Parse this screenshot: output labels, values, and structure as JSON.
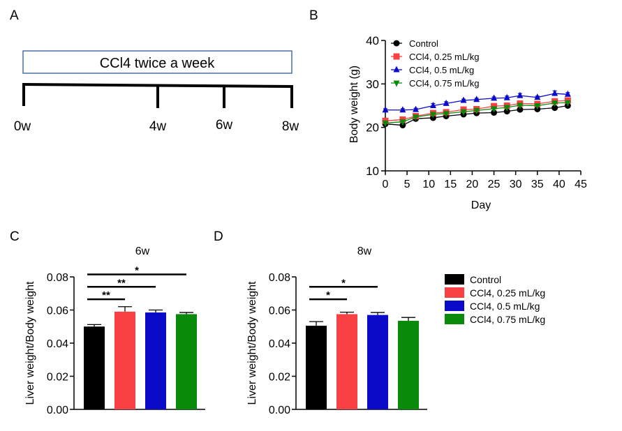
{
  "panels": {
    "a": {
      "letter": "A",
      "banner": "CCl4 twice a week",
      "timepoints": [
        "0w",
        "4w",
        "6w",
        "8w"
      ]
    },
    "b": {
      "letter": "B"
    },
    "c": {
      "letter": "C"
    },
    "d": {
      "letter": "D"
    }
  },
  "colors": {
    "control": "#000000",
    "dose_025": "#f94144",
    "dose_05": "#0a0ac8",
    "dose_075": "#0a8a0a",
    "banner_border": "#4a6fa5"
  },
  "chart_data": [
    {
      "type": "line",
      "xlabel": "Day",
      "ylabel": "Body weight (g)",
      "xlim": [
        0,
        45
      ],
      "ylim": [
        10,
        40
      ],
      "xticks": [
        "0",
        "5",
        "10",
        "15",
        "20",
        "25",
        "30",
        "35",
        "40",
        "45"
      ],
      "yticks": [
        "10",
        "20",
        "30",
        "40"
      ],
      "legend": "top-left",
      "x": [
        0,
        4,
        7,
        11,
        14,
        18,
        21,
        25,
        28,
        31,
        35,
        39,
        42
      ],
      "series": [
        {
          "name": "Control",
          "marker": "circle",
          "values": [
            20.8,
            20.5,
            22.0,
            22.2,
            22.6,
            23.0,
            23.3,
            23.4,
            23.7,
            24.1,
            24.2,
            24.5,
            25.0
          ],
          "errors": [
            0.3,
            0.3,
            0.3,
            0.3,
            0.3,
            0.3,
            0.3,
            0.3,
            0.3,
            0.3,
            0.3,
            0.3,
            0.4
          ]
        },
        {
          "name": "CCl4, 0.25 mL/kg",
          "marker": "square",
          "values": [
            21.5,
            21.8,
            22.6,
            23.3,
            23.5,
            24.1,
            24.2,
            24.9,
            25.0,
            25.5,
            25.4,
            26.0,
            26.2
          ],
          "errors": [
            0.3,
            0.3,
            0.3,
            0.3,
            0.3,
            0.3,
            0.3,
            0.3,
            0.3,
            0.3,
            0.3,
            0.4,
            0.4
          ]
        },
        {
          "name": "CCl4, 0.5 mL/kg",
          "marker": "triangle-up",
          "values": [
            24.0,
            24.0,
            24.1,
            25.0,
            25.5,
            26.2,
            26.4,
            26.7,
            26.8,
            27.3,
            26.9,
            27.8,
            27.6
          ],
          "errors": [
            0.3,
            0.3,
            0.3,
            0.5,
            0.4,
            0.3,
            0.3,
            0.3,
            0.4,
            0.5,
            0.3,
            0.6,
            0.4
          ]
        },
        {
          "name": "CCl4, 0.75 mL/kg",
          "marker": "triangle-down",
          "values": [
            21.0,
            21.3,
            22.4,
            23.0,
            23.2,
            23.6,
            23.9,
            24.3,
            24.6,
            25.1,
            25.0,
            25.6,
            25.7
          ],
          "errors": [
            0.3,
            0.3,
            0.3,
            0.3,
            0.3,
            0.3,
            0.3,
            0.3,
            0.3,
            0.3,
            0.3,
            0.4,
            0.4
          ]
        }
      ]
    },
    {
      "type": "bar",
      "title": "6w",
      "ylabel": "Liver weight/Body weight",
      "ylim": [
        0,
        0.08
      ],
      "yticks": [
        "0.00",
        "0.02",
        "0.04",
        "0.06",
        "0.08"
      ],
      "categories": [
        "Control",
        "CCl4, 0.25 mL/kg",
        "CCl4, 0.5 mL/kg",
        "CCl4, 0.75 mL/kg"
      ],
      "values": [
        0.05,
        0.059,
        0.0585,
        0.0575
      ],
      "errors": [
        0.0012,
        0.003,
        0.0015,
        0.001
      ],
      "significance": [
        {
          "from": 0,
          "to": 1,
          "label": "**"
        },
        {
          "from": 0,
          "to": 2,
          "label": "**"
        },
        {
          "from": 0,
          "to": 3,
          "label": "*"
        }
      ]
    },
    {
      "type": "bar",
      "title": "8w",
      "ylabel": "Liver weight/Body weight",
      "ylim": [
        0,
        0.08
      ],
      "yticks": [
        "0.00",
        "0.02",
        "0.04",
        "0.06",
        "0.08"
      ],
      "categories": [
        "Control",
        "CCl4, 0.25 mL/kg",
        "CCl4, 0.5 mL/kg",
        "CCl4, 0.75 mL/kg"
      ],
      "values": [
        0.0505,
        0.0575,
        0.057,
        0.0535
      ],
      "errors": [
        0.0025,
        0.0012,
        0.0015,
        0.002
      ],
      "significance": [
        {
          "from": 0,
          "to": 1,
          "label": "*"
        },
        {
          "from": 0,
          "to": 2,
          "label": "*"
        }
      ]
    }
  ],
  "bar_legend": [
    "Control",
    "CCl4, 0.25 mL/kg",
    "CCl4, 0.5 mL/kg",
    "CCl4, 0.75 mL/kg"
  ]
}
